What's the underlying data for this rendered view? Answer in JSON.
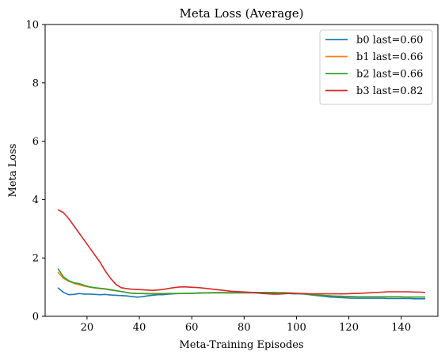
{
  "chart_data": {
    "type": "line",
    "title": "Meta Loss (Average)",
    "xlabel": "Meta-Training Episodes",
    "ylabel": "Meta Loss",
    "xlim": [
      4,
      154
    ],
    "ylim": [
      0,
      10
    ],
    "xticks": [
      20,
      40,
      60,
      80,
      100,
      120,
      140
    ],
    "yticks": [
      0,
      2,
      4,
      6,
      8,
      10
    ],
    "grid": false,
    "legend_position": "top-right",
    "x_start": 9,
    "x_step": 2,
    "series": [
      {
        "name": "b0 last=0.60",
        "color": "#1f77b4",
        "values": [
          0.97,
          0.82,
          0.74,
          0.75,
          0.78,
          0.76,
          0.76,
          0.75,
          0.74,
          0.75,
          0.73,
          0.72,
          0.71,
          0.7,
          0.68,
          0.66,
          0.67,
          0.7,
          0.72,
          0.74,
          0.74,
          0.76,
          0.77,
          0.78,
          0.78,
          0.78,
          0.79,
          0.8,
          0.8,
          0.8,
          0.81,
          0.81,
          0.8,
          0.8,
          0.8,
          0.8,
          0.8,
          0.8,
          0.8,
          0.79,
          0.79,
          0.79,
          0.78,
          0.78,
          0.78,
          0.77,
          0.77,
          0.76,
          0.74,
          0.72,
          0.7,
          0.68,
          0.66,
          0.65,
          0.64,
          0.63,
          0.62,
          0.62,
          0.62,
          0.62,
          0.62,
          0.62,
          0.62,
          0.61,
          0.61,
          0.61,
          0.61,
          0.61,
          0.6,
          0.6,
          0.6
        ]
      },
      {
        "name": "b1 last=0.66",
        "color": "#ff7f0e",
        "values": [
          1.5,
          1.3,
          1.2,
          1.13,
          1.08,
          1.03,
          1.0,
          0.97,
          0.95,
          0.93,
          0.9,
          0.88,
          0.85,
          0.82,
          0.79,
          0.78,
          0.78,
          0.78,
          0.78,
          0.78,
          0.78,
          0.78,
          0.78,
          0.78,
          0.78,
          0.78,
          0.79,
          0.79,
          0.8,
          0.8,
          0.8,
          0.8,
          0.8,
          0.8,
          0.81,
          0.81,
          0.81,
          0.81,
          0.81,
          0.81,
          0.81,
          0.81,
          0.8,
          0.8,
          0.8,
          0.79,
          0.78,
          0.77,
          0.76,
          0.74,
          0.72,
          0.71,
          0.7,
          0.69,
          0.68,
          0.68,
          0.67,
          0.67,
          0.67,
          0.67,
          0.67,
          0.67,
          0.67,
          0.67,
          0.67,
          0.67,
          0.66,
          0.66,
          0.66,
          0.66,
          0.66
        ]
      },
      {
        "name": "b2 last=0.66",
        "color": "#2ca02c",
        "values": [
          1.62,
          1.35,
          1.22,
          1.15,
          1.12,
          1.06,
          1.01,
          0.98,
          0.96,
          0.94,
          0.91,
          0.88,
          0.85,
          0.82,
          0.79,
          0.78,
          0.78,
          0.77,
          0.77,
          0.77,
          0.77,
          0.78,
          0.78,
          0.78,
          0.78,
          0.79,
          0.79,
          0.8,
          0.8,
          0.81,
          0.81,
          0.81,
          0.81,
          0.81,
          0.82,
          0.82,
          0.82,
          0.82,
          0.82,
          0.82,
          0.82,
          0.82,
          0.81,
          0.81,
          0.8,
          0.79,
          0.78,
          0.77,
          0.75,
          0.73,
          0.72,
          0.71,
          0.7,
          0.69,
          0.69,
          0.68,
          0.68,
          0.67,
          0.67,
          0.67,
          0.67,
          0.67,
          0.67,
          0.67,
          0.67,
          0.67,
          0.66,
          0.66,
          0.66,
          0.66,
          0.66
        ]
      },
      {
        "name": "b3 last=0.82",
        "color": "#d62728",
        "values": [
          3.65,
          3.55,
          3.35,
          3.1,
          2.85,
          2.6,
          2.35,
          2.1,
          1.85,
          1.55,
          1.3,
          1.1,
          0.98,
          0.95,
          0.93,
          0.92,
          0.91,
          0.9,
          0.89,
          0.9,
          0.92,
          0.95,
          0.98,
          1.0,
          1.01,
          1.0,
          0.99,
          0.98,
          0.96,
          0.94,
          0.92,
          0.9,
          0.88,
          0.86,
          0.85,
          0.84,
          0.83,
          0.82,
          0.8,
          0.78,
          0.77,
          0.76,
          0.76,
          0.77,
          0.78,
          0.78,
          0.78,
          0.78,
          0.77,
          0.77,
          0.77,
          0.77,
          0.77,
          0.77,
          0.77,
          0.77,
          0.78,
          0.78,
          0.79,
          0.8,
          0.81,
          0.82,
          0.83,
          0.84,
          0.84,
          0.84,
          0.84,
          0.84,
          0.83,
          0.83,
          0.82
        ]
      }
    ]
  }
}
